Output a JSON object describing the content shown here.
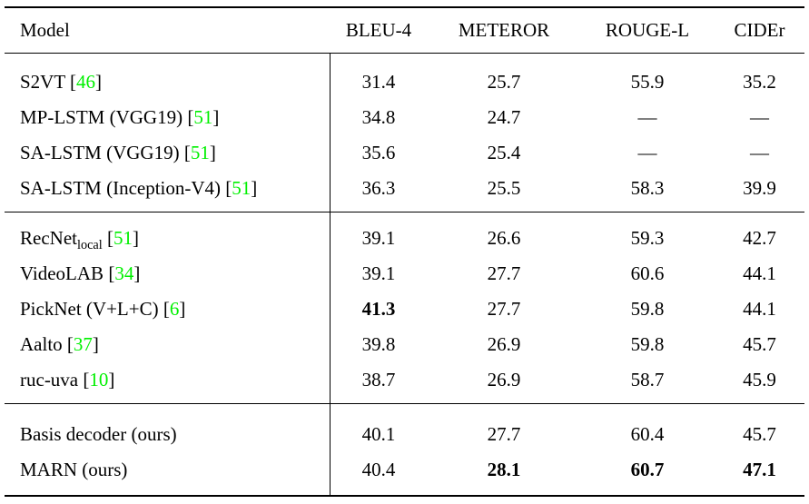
{
  "colors": {
    "citation_green": "#00f000",
    "text": "#000000",
    "rules": "#000000",
    "background": "#ffffff"
  },
  "table": {
    "citation_open": "[",
    "citation_close": "]",
    "header": {
      "model": "Model",
      "metrics": [
        "BLEU-4",
        "METEROR",
        "ROUGE-L",
        "CIDEr"
      ]
    },
    "sections": [
      {
        "rows": [
          {
            "model": "S2VT",
            "cite": "46",
            "values": [
              "31.4",
              "25.7",
              "55.9",
              "35.2"
            ],
            "bold": [
              false,
              false,
              false,
              false
            ]
          },
          {
            "model": "MP-LSTM (VGG19)",
            "cite": "51",
            "values": [
              "34.8",
              "24.7",
              "—",
              "—"
            ],
            "bold": [
              false,
              false,
              false,
              false
            ]
          },
          {
            "model": "SA-LSTM (VGG19)",
            "cite": "51",
            "values": [
              "35.6",
              "25.4",
              "—",
              "—"
            ],
            "bold": [
              false,
              false,
              false,
              false
            ]
          },
          {
            "model": "SA-LSTM (Inception-V4)",
            "cite": "51",
            "values": [
              "36.3",
              "25.5",
              "58.3",
              "39.9"
            ],
            "bold": [
              false,
              false,
              false,
              false
            ]
          }
        ]
      },
      {
        "rows": [
          {
            "model": "RecNet",
            "model_sub": "local",
            "cite": "51",
            "values": [
              "39.1",
              "26.6",
              "59.3",
              "42.7"
            ],
            "bold": [
              false,
              false,
              false,
              false
            ]
          },
          {
            "model": "VideoLAB",
            "cite": "34",
            "values": [
              "39.1",
              "27.7",
              "60.6",
              "44.1"
            ],
            "bold": [
              false,
              false,
              false,
              false
            ]
          },
          {
            "model": "PickNet (V+L+C)",
            "cite": "6",
            "values": [
              "41.3",
              "27.7",
              "59.8",
              "44.1"
            ],
            "bold": [
              true,
              false,
              false,
              false
            ]
          },
          {
            "model": "Aalto",
            "cite": "37",
            "values": [
              "39.8",
              "26.9",
              "59.8",
              "45.7"
            ],
            "bold": [
              false,
              false,
              false,
              false
            ]
          },
          {
            "model": "ruc-uva",
            "cite": "10",
            "values": [
              "38.7",
              "26.9",
              "58.7",
              "45.9"
            ],
            "bold": [
              false,
              false,
              false,
              false
            ]
          }
        ]
      },
      {
        "rows": [
          {
            "model": "Basis decoder (ours)",
            "values": [
              "40.1",
              "27.7",
              "60.4",
              "45.7"
            ],
            "bold": [
              false,
              false,
              false,
              false
            ]
          },
          {
            "model": "MARN (ours)",
            "values": [
              "40.4",
              "28.1",
              "60.7",
              "47.1"
            ],
            "bold": [
              false,
              true,
              true,
              true
            ]
          }
        ]
      }
    ]
  }
}
